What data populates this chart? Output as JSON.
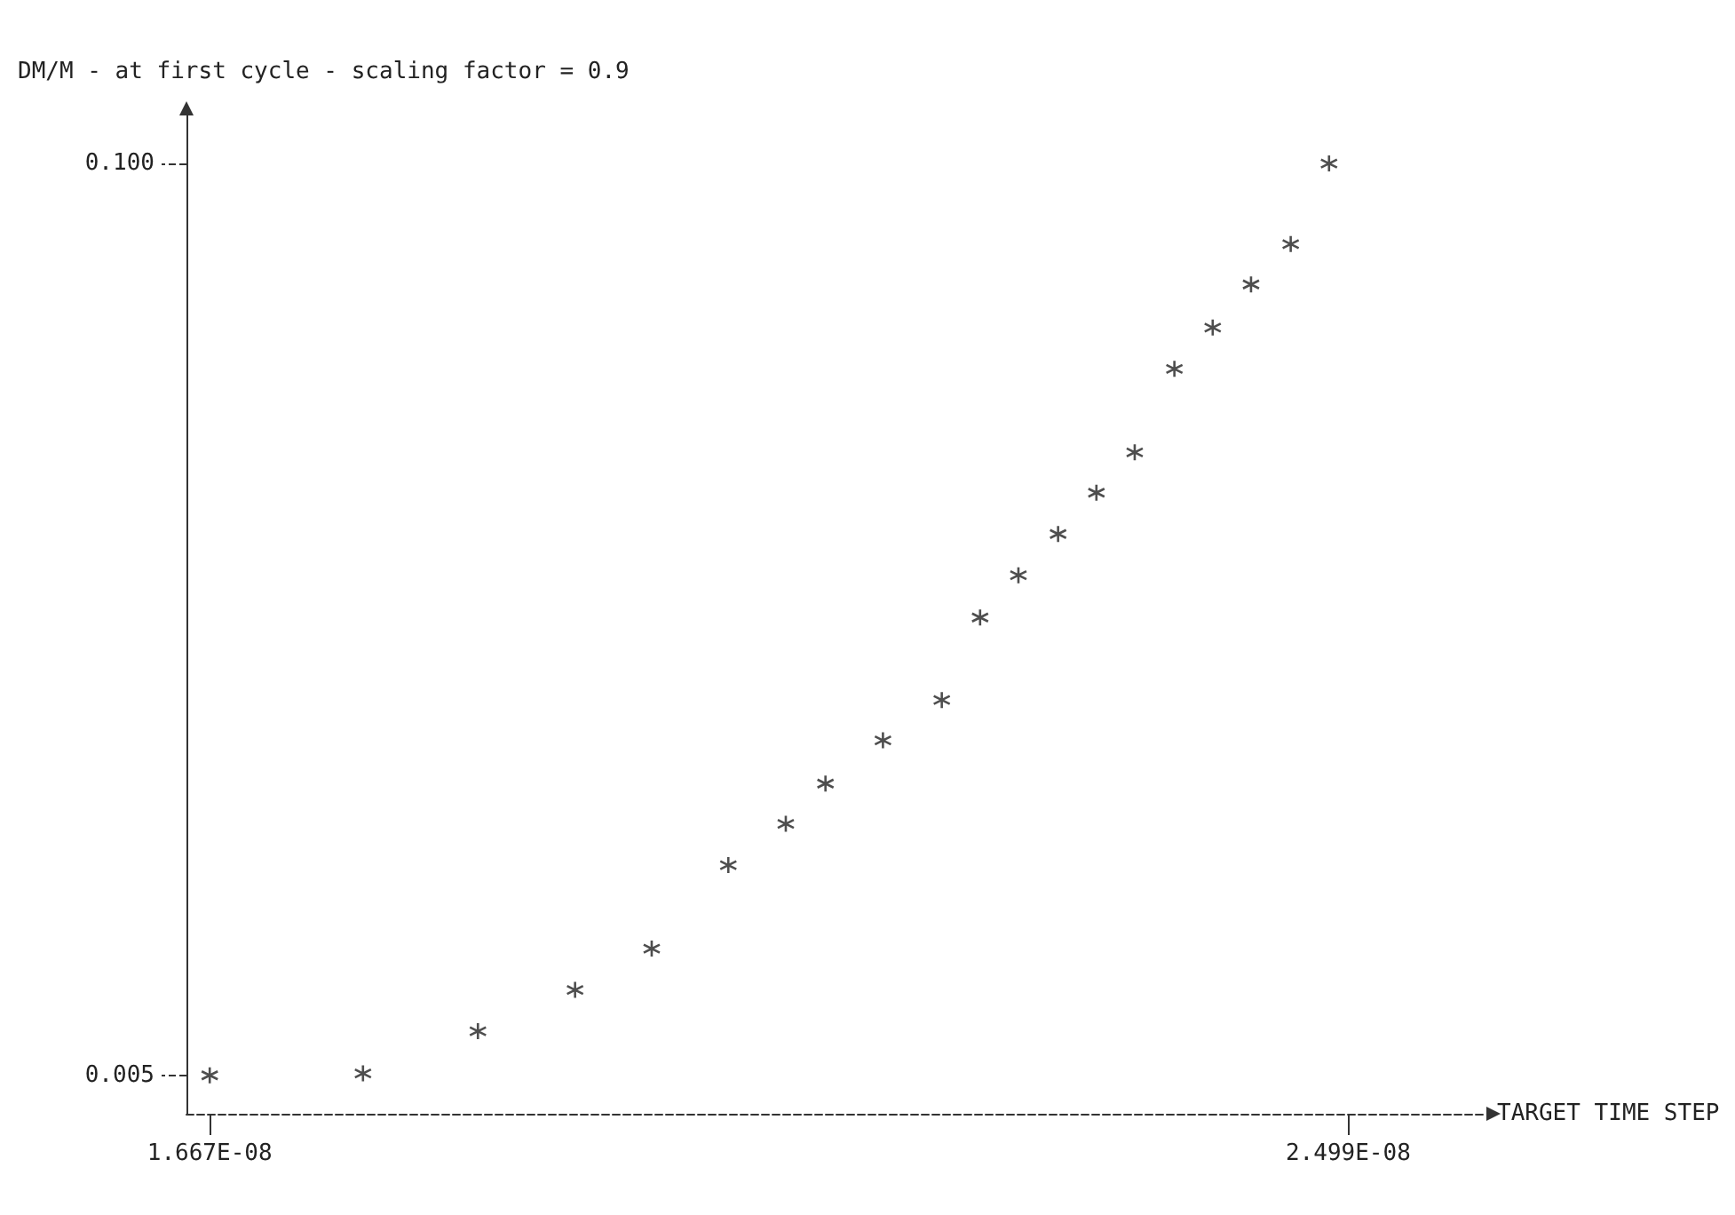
{
  "chart_data": {
    "type": "scatter",
    "ylabel": "DM/M - at first cycle - scaling factor = 0.9",
    "xlabel": "TARGET TIME STEP",
    "x": [
      1.667e-08,
      1.779e-08,
      1.863e-08,
      1.934e-08,
      1.99e-08,
      2.046e-08,
      2.088e-08,
      2.117e-08,
      2.159e-08,
      2.202e-08,
      2.23e-08,
      2.258e-08,
      2.287e-08,
      2.315e-08,
      2.343e-08,
      2.372e-08,
      2.4e-08,
      2.428e-08,
      2.457e-08,
      2.485e-08
    ],
    "values": [
      0.005,
      0.0052,
      0.0096,
      0.0139,
      0.0182,
      0.0269,
      0.0312,
      0.0354,
      0.0399,
      0.0441,
      0.0527,
      0.0571,
      0.0614,
      0.0657,
      0.0699,
      0.0786,
      0.0829,
      0.0874,
      0.0916,
      0.1
    ],
    "color": "#222222",
    "marker": "cross",
    "xlim": [
      1.65e-08,
      2.6e-08
    ],
    "ylim": [
      0.001,
      0.105
    ],
    "xticks": [
      {
        "value": 1.667e-08,
        "label": "1.667E-08"
      },
      {
        "value": 2.499e-08,
        "label": "2.499E-08"
      }
    ],
    "yticks": [
      {
        "value": 0.005,
        "label": "0.005"
      },
      {
        "value": 0.1,
        "label": "0.100"
      }
    ],
    "grid": false
  }
}
